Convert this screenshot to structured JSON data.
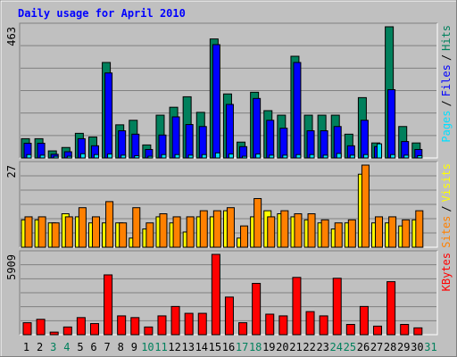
{
  "title": "Daily usage for April 2010",
  "separator": "/",
  "chart_data": [
    {
      "type": "bar",
      "ylim": [
        0,
        463
      ],
      "yticks": [
        463
      ],
      "series": [
        {
          "name": "Hits",
          "color": "#00805c",
          "values": [
            68,
            68,
            25,
            37,
            87,
            74,
            337,
            117,
            133,
            46,
            151,
            179,
            216,
            161,
            420,
            226,
            56,
            232,
            167,
            151,
            359,
            151,
            151,
            151,
            84,
            213,
            53,
            463,
            111,
            53,
            0
          ]
        },
        {
          "name": "Files",
          "color": "#0000ff",
          "values": [
            52,
            52,
            13,
            22,
            68,
            43,
            300,
            96,
            84,
            30,
            81,
            145,
            118,
            111,
            400,
            189,
            40,
            210,
            133,
            105,
            337,
            96,
            96,
            111,
            43,
            133,
            40,
            241,
            58,
            30,
            0
          ]
        },
        {
          "name": "Pages",
          "color": "#00e0ff",
          "values": [
            12,
            10,
            6,
            6,
            15,
            12,
            14,
            10,
            8,
            6,
            12,
            12,
            10,
            12,
            18,
            14,
            6,
            14,
            10,
            10,
            12,
            12,
            10,
            16,
            10,
            12,
            50,
            12,
            10,
            8,
            0
          ]
        }
      ]
    },
    {
      "type": "bar",
      "ylim": [
        0,
        27
      ],
      "yticks": [
        27
      ],
      "series": [
        {
          "name": "Visits",
          "color": "#ffff00",
          "values": [
            9,
            9,
            8,
            11,
            10,
            8,
            8,
            8,
            3,
            6,
            10,
            8,
            5,
            10,
            10,
            12,
            3,
            10,
            12,
            11,
            10,
            9,
            8,
            6,
            8,
            24,
            8,
            8,
            7,
            9,
            0
          ]
        },
        {
          "name": "Sites",
          "color": "#ff8000",
          "values": [
            10,
            10,
            8,
            10,
            13,
            10,
            15,
            8,
            13,
            8,
            11,
            10,
            10,
            12,
            12,
            13,
            7,
            16,
            10,
            12,
            11,
            11,
            9,
            8,
            9,
            27,
            10,
            10,
            9,
            12,
            0
          ]
        }
      ]
    },
    {
      "type": "bar",
      "ylim": [
        0,
        5909
      ],
      "yticks": [
        5909
      ],
      "categories": [
        "1",
        "2",
        "3",
        "4",
        "5",
        "6",
        "7",
        "8",
        "9",
        "10",
        "11",
        "12",
        "13",
        "14",
        "15",
        "16",
        "17",
        "18",
        "19",
        "20",
        "21",
        "22",
        "23",
        "24",
        "25",
        "26",
        "27",
        "28",
        "29",
        "30",
        "31"
      ],
      "category_colors": [
        "#000000",
        "#000000",
        "#00805c",
        "#00805c",
        "#000000",
        "#000000",
        "#000000",
        "#000000",
        "#000000",
        "#00805c",
        "#00805c",
        "#000000",
        "#000000",
        "#000000",
        "#000000",
        "#000000",
        "#00805c",
        "#00805c",
        "#000000",
        "#000000",
        "#000000",
        "#000000",
        "#000000",
        "#00805c",
        "#00805c",
        "#000000",
        "#000000",
        "#000000",
        "#000000",
        "#000000",
        "#00805c"
      ],
      "series": [
        {
          "name": "KBytes",
          "color": "#ff0000",
          "values": [
            881,
            1132,
            189,
            566,
            1258,
            818,
            4400,
            1384,
            1258,
            566,
            1384,
            2076,
            1572,
            1572,
            5909,
            2768,
            881,
            3774,
            1510,
            1384,
            4214,
            1698,
            1384,
            4151,
            755,
            2076,
            629,
            3900,
            755,
            503,
            0
          ]
        }
      ]
    }
  ]
}
